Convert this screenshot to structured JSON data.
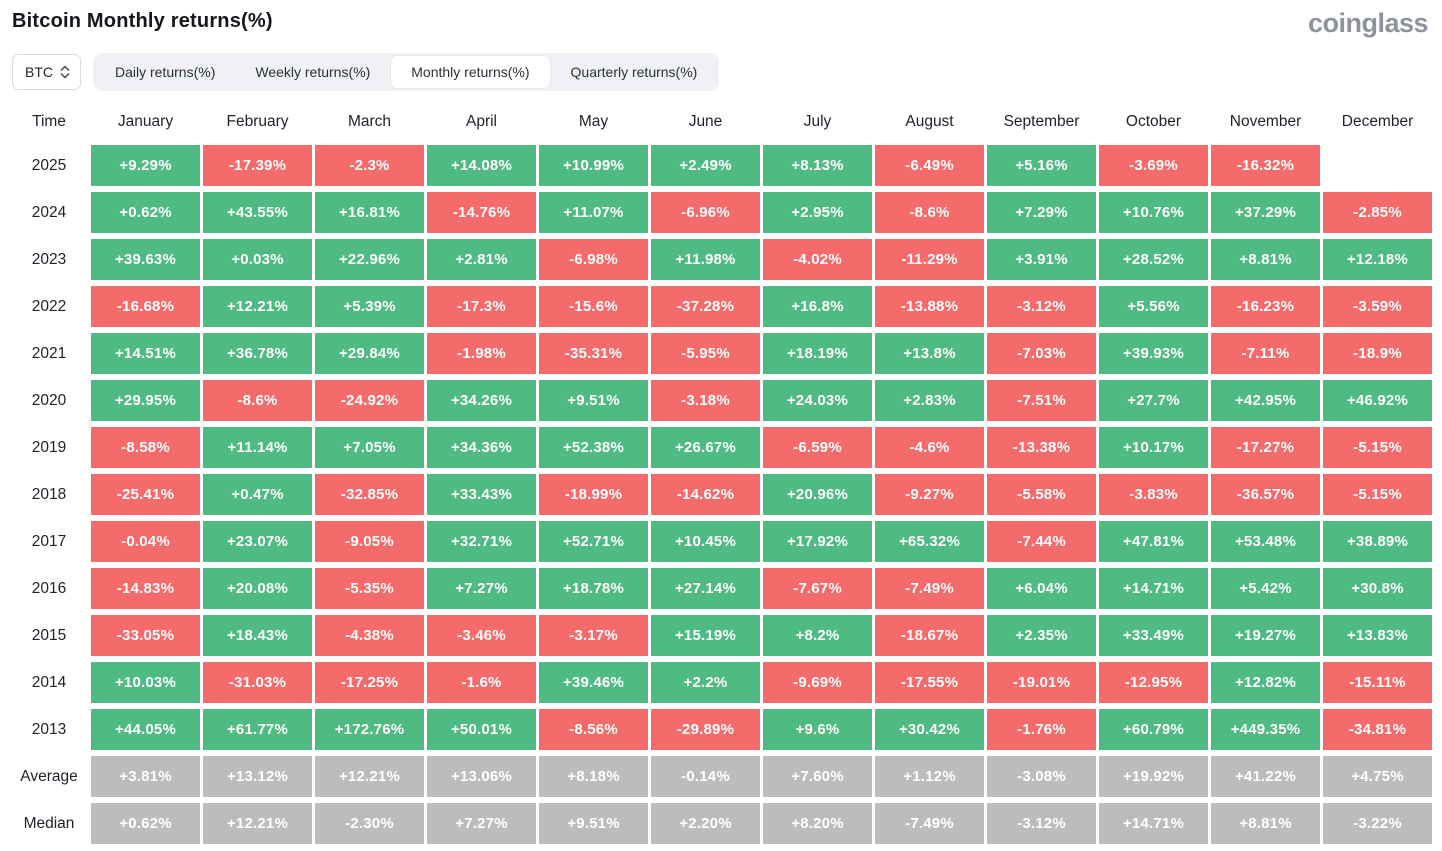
{
  "header": {
    "title": "Bitcoin Monthly returns(%)",
    "logo": "coinglass"
  },
  "controls": {
    "symbol": "BTC",
    "active_tab": 2,
    "tabs": [
      {
        "id": "daily",
        "label": "Daily returns(%)"
      },
      {
        "id": "weekly",
        "label": "Weekly returns(%)"
      },
      {
        "id": "monthly",
        "label": "Monthly returns(%)"
      },
      {
        "id": "quarterly",
        "label": "Quarterly returns(%)"
      }
    ]
  },
  "chart_data": {
    "type": "heatmap",
    "title": "Bitcoin Monthly returns(%)",
    "row_header": "Time",
    "columns": [
      "January",
      "February",
      "March",
      "April",
      "May",
      "June",
      "July",
      "August",
      "September",
      "October",
      "November",
      "December"
    ],
    "colors": {
      "positive": "#4fba82",
      "negative": "#f56b6b",
      "aggregate": "#bcbcbc"
    },
    "rows": [
      {
        "label": "2025",
        "type": "year",
        "values": [
          "+9.29%",
          "-17.39%",
          "-2.3%",
          "+14.08%",
          "+10.99%",
          "+2.49%",
          "+8.13%",
          "-6.49%",
          "+5.16%",
          "-3.69%",
          "-16.32%",
          null
        ]
      },
      {
        "label": "2024",
        "type": "year",
        "values": [
          "+0.62%",
          "+43.55%",
          "+16.81%",
          "-14.76%",
          "+11.07%",
          "-6.96%",
          "+2.95%",
          "-8.6%",
          "+7.29%",
          "+10.76%",
          "+37.29%",
          "-2.85%"
        ]
      },
      {
        "label": "2023",
        "type": "year",
        "values": [
          "+39.63%",
          "+0.03%",
          "+22.96%",
          "+2.81%",
          "-6.98%",
          "+11.98%",
          "-4.02%",
          "-11.29%",
          "+3.91%",
          "+28.52%",
          "+8.81%",
          "+12.18%"
        ]
      },
      {
        "label": "2022",
        "type": "year",
        "values": [
          "-16.68%",
          "+12.21%",
          "+5.39%",
          "-17.3%",
          "-15.6%",
          "-37.28%",
          "+16.8%",
          "-13.88%",
          "-3.12%",
          "+5.56%",
          "-16.23%",
          "-3.59%"
        ]
      },
      {
        "label": "2021",
        "type": "year",
        "values": [
          "+14.51%",
          "+36.78%",
          "+29.84%",
          "-1.98%",
          "-35.31%",
          "-5.95%",
          "+18.19%",
          "+13.8%",
          "-7.03%",
          "+39.93%",
          "-7.11%",
          "-18.9%"
        ]
      },
      {
        "label": "2020",
        "type": "year",
        "values": [
          "+29.95%",
          "-8.6%",
          "-24.92%",
          "+34.26%",
          "+9.51%",
          "-3.18%",
          "+24.03%",
          "+2.83%",
          "-7.51%",
          "+27.7%",
          "+42.95%",
          "+46.92%"
        ]
      },
      {
        "label": "2019",
        "type": "year",
        "values": [
          "-8.58%",
          "+11.14%",
          "+7.05%",
          "+34.36%",
          "+52.38%",
          "+26.67%",
          "-6.59%",
          "-4.6%",
          "-13.38%",
          "+10.17%",
          "-17.27%",
          "-5.15%"
        ]
      },
      {
        "label": "2018",
        "type": "year",
        "values": [
          "-25.41%",
          "+0.47%",
          "-32.85%",
          "+33.43%",
          "-18.99%",
          "-14.62%",
          "+20.96%",
          "-9.27%",
          "-5.58%",
          "-3.83%",
          "-36.57%",
          "-5.15%"
        ]
      },
      {
        "label": "2017",
        "type": "year",
        "values": [
          "-0.04%",
          "+23.07%",
          "-9.05%",
          "+32.71%",
          "+52.71%",
          "+10.45%",
          "+17.92%",
          "+65.32%",
          "-7.44%",
          "+47.81%",
          "+53.48%",
          "+38.89%"
        ]
      },
      {
        "label": "2016",
        "type": "year",
        "values": [
          "-14.83%",
          "+20.08%",
          "-5.35%",
          "+7.27%",
          "+18.78%",
          "+27.14%",
          "-7.67%",
          "-7.49%",
          "+6.04%",
          "+14.71%",
          "+5.42%",
          "+30.8%"
        ]
      },
      {
        "label": "2015",
        "type": "year",
        "values": [
          "-33.05%",
          "+18.43%",
          "-4.38%",
          "-3.46%",
          "-3.17%",
          "+15.19%",
          "+8.2%",
          "-18.67%",
          "+2.35%",
          "+33.49%",
          "+19.27%",
          "+13.83%"
        ]
      },
      {
        "label": "2014",
        "type": "year",
        "values": [
          "+10.03%",
          "-31.03%",
          "-17.25%",
          "-1.6%",
          "+39.46%",
          "+2.2%",
          "-9.69%",
          "-17.55%",
          "-19.01%",
          "-12.95%",
          "+12.82%",
          "-15.11%"
        ]
      },
      {
        "label": "2013",
        "type": "year",
        "values": [
          "+44.05%",
          "+61.77%",
          "+172.76%",
          "+50.01%",
          "-8.56%",
          "-29.89%",
          "+9.6%",
          "+30.42%",
          "-1.76%",
          "+60.79%",
          "+449.35%",
          "-34.81%"
        ]
      },
      {
        "label": "Average",
        "type": "aggregate",
        "values": [
          "+3.81%",
          "+13.12%",
          "+12.21%",
          "+13.06%",
          "+8.18%",
          "-0.14%",
          "+7.60%",
          "+1.12%",
          "-3.08%",
          "+19.92%",
          "+41.22%",
          "+4.75%"
        ]
      },
      {
        "label": "Median",
        "type": "aggregate",
        "values": [
          "+0.62%",
          "+12.21%",
          "-2.30%",
          "+7.27%",
          "+9.51%",
          "+2.20%",
          "+8.20%",
          "-7.49%",
          "-3.12%",
          "+14.71%",
          "+8.81%",
          "-3.22%"
        ]
      }
    ]
  }
}
